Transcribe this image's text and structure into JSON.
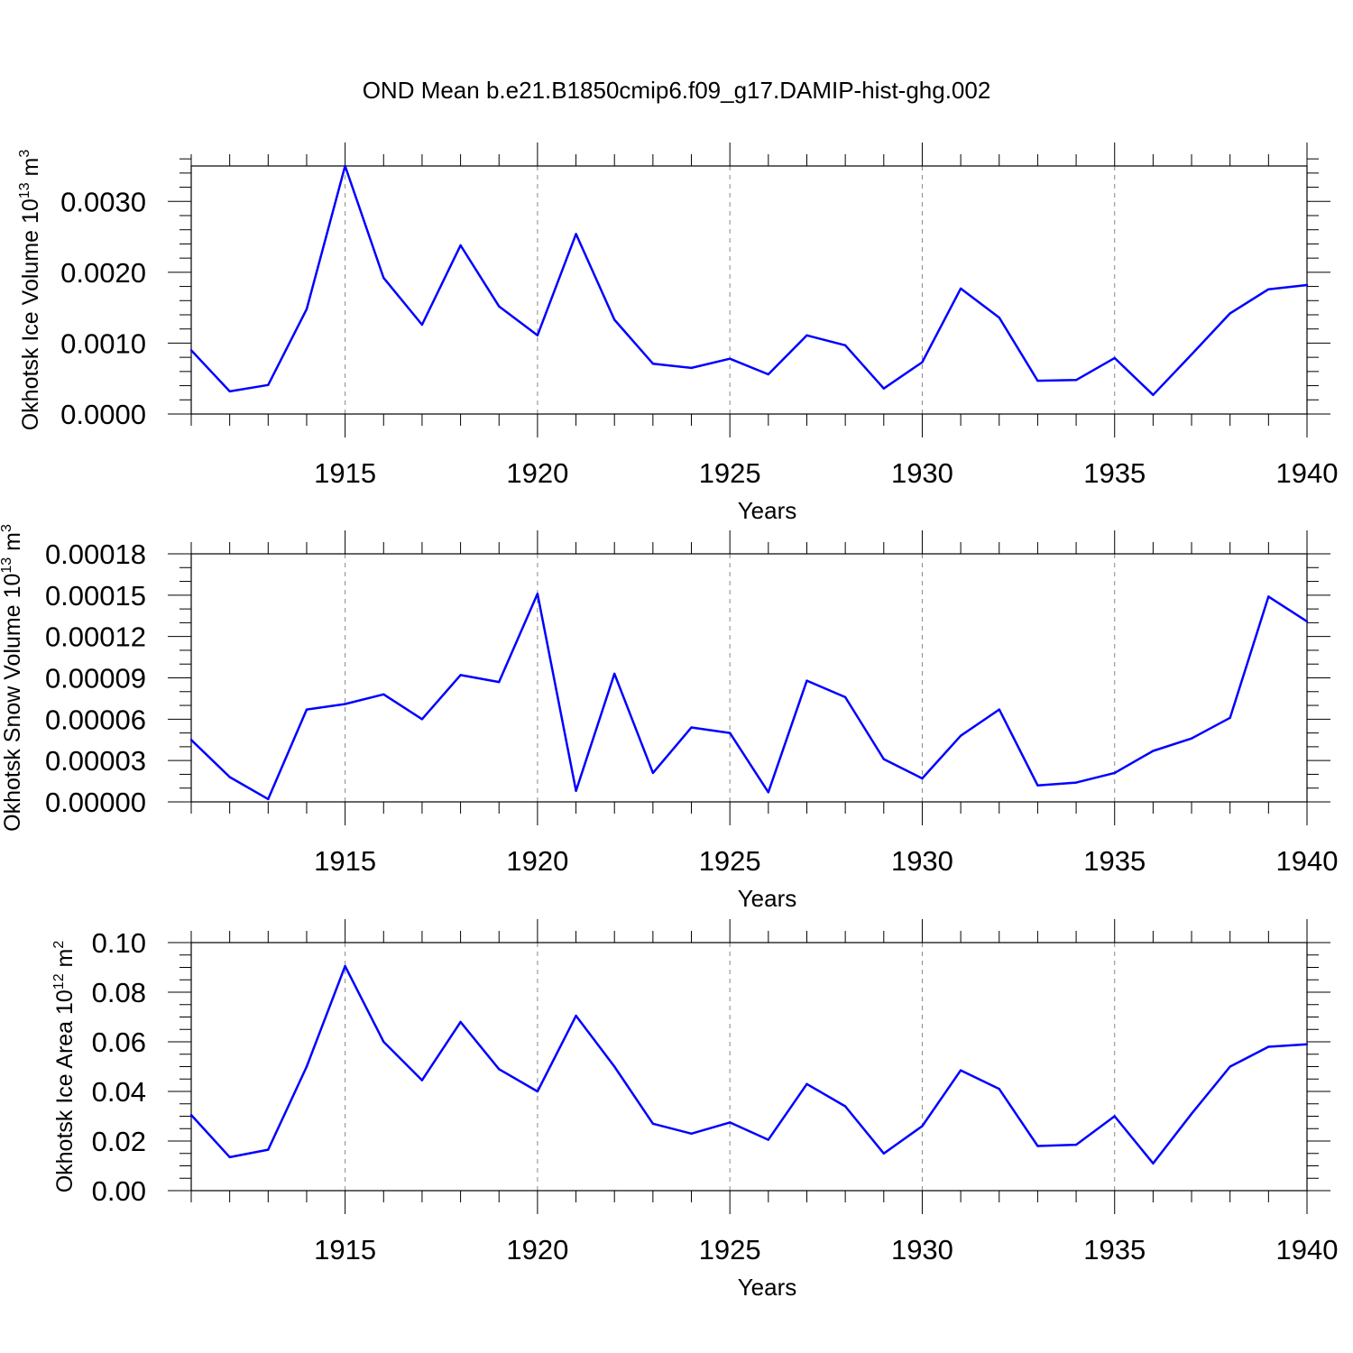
{
  "title": "OND Mean b.e21.B1850cmip6.f09_g17.DAMIP-hist-ghg.002",
  "series_color": "#0000ff",
  "chart_data": [
    {
      "type": "line",
      "ylabel": "Okhotsk Ice Volume 10",
      "ylabel_exp": "13",
      "ylabel_unit": " m",
      "ylabel_unit_exp": "3",
      "xlabel": "Years",
      "xlim": [
        1911,
        1940
      ],
      "ylim": [
        0,
        0.0035
      ],
      "x_ticks": [
        1915,
        1920,
        1925,
        1930,
        1935,
        1940
      ],
      "y_ticks": [
        0,
        0.001,
        0.002,
        0.003
      ],
      "y_tick_labels": [
        "0.0000",
        "0.0010",
        "0.0020",
        "0.0030"
      ],
      "y_minor_step": 0.0002,
      "x": [
        1911,
        1912,
        1913,
        1914,
        1915,
        1916,
        1917,
        1918,
        1919,
        1920,
        1921,
        1922,
        1923,
        1924,
        1925,
        1926,
        1927,
        1928,
        1929,
        1930,
        1931,
        1932,
        1933,
        1934,
        1935,
        1936,
        1937,
        1938,
        1939,
        1940
      ],
      "y": [
        0.0009,
        0.00032,
        0.00041,
        0.00148,
        0.0035,
        0.00192,
        0.00126,
        0.00238,
        0.00152,
        0.00111,
        0.00254,
        0.00133,
        0.00071,
        0.00065,
        0.00078,
        0.00056,
        0.00111,
        0.00097,
        0.00036,
        0.00073,
        0.00177,
        0.00136,
        0.00047,
        0.00048,
        0.00079,
        0.00027,
        0.00084,
        0.00142,
        0.00176,
        0.00182
      ]
    },
    {
      "type": "line",
      "ylabel": "Okhotsk Snow Volume 10",
      "ylabel_exp": "13",
      "ylabel_unit": " m",
      "ylabel_unit_exp": "3",
      "xlabel": "Years",
      "xlim": [
        1911,
        1940
      ],
      "ylim": [
        0,
        0.00018
      ],
      "x_ticks": [
        1915,
        1920,
        1925,
        1930,
        1935,
        1940
      ],
      "y_ticks": [
        0,
        3e-05,
        6e-05,
        9e-05,
        0.00012,
        0.00015,
        0.00018
      ],
      "y_tick_labels": [
        "0.00000",
        "0.00003",
        "0.00006",
        "0.00009",
        "0.00012",
        "0.00015",
        "0.00018"
      ],
      "y_minor_step": 1e-05,
      "x": [
        1911,
        1912,
        1913,
        1914,
        1915,
        1916,
        1917,
        1918,
        1919,
        1920,
        1921,
        1922,
        1923,
        1924,
        1925,
        1926,
        1927,
        1928,
        1929,
        1930,
        1931,
        1932,
        1933,
        1934,
        1935,
        1936,
        1937,
        1938,
        1939,
        1940
      ],
      "y": [
        4.5e-05,
        1.8e-05,
        2e-06,
        6.7e-05,
        7.1e-05,
        7.8e-05,
        6e-05,
        9.2e-05,
        8.7e-05,
        0.000151,
        8e-06,
        9.3e-05,
        2.1e-05,
        5.4e-05,
        5e-05,
        7e-06,
        8.8e-05,
        7.6e-05,
        3.1e-05,
        1.7e-05,
        4.8e-05,
        6.7e-05,
        1.2e-05,
        1.4e-05,
        2.1e-05,
        3.7e-05,
        4.6e-05,
        6.1e-05,
        0.000149,
        0.000131
      ]
    },
    {
      "type": "line",
      "ylabel": "Okhotsk Ice Area 10",
      "ylabel_exp": "12",
      "ylabel_unit": " m",
      "ylabel_unit_exp": "2",
      "xlabel": "Years",
      "xlim": [
        1911,
        1940
      ],
      "ylim": [
        0,
        0.1
      ],
      "x_ticks": [
        1915,
        1920,
        1925,
        1930,
        1935,
        1940
      ],
      "y_ticks": [
        0,
        0.02,
        0.04,
        0.06,
        0.08,
        0.1
      ],
      "y_tick_labels": [
        "0.00",
        "0.02",
        "0.04",
        "0.06",
        "0.08",
        "0.10"
      ],
      "y_minor_step": 0.005,
      "x": [
        1911,
        1912,
        1913,
        1914,
        1915,
        1916,
        1917,
        1918,
        1919,
        1920,
        1921,
        1922,
        1923,
        1924,
        1925,
        1926,
        1927,
        1928,
        1929,
        1930,
        1931,
        1932,
        1933,
        1934,
        1935,
        1936,
        1937,
        1938,
        1939,
        1940
      ],
      "y": [
        0.0305,
        0.0135,
        0.0165,
        0.05,
        0.0905,
        0.06,
        0.0445,
        0.068,
        0.049,
        0.04,
        0.0705,
        0.05,
        0.027,
        0.023,
        0.0275,
        0.0205,
        0.043,
        0.034,
        0.015,
        0.026,
        0.0485,
        0.041,
        0.018,
        0.0185,
        0.03,
        0.011,
        0.031,
        0.05,
        0.058,
        0.059
      ]
    }
  ]
}
